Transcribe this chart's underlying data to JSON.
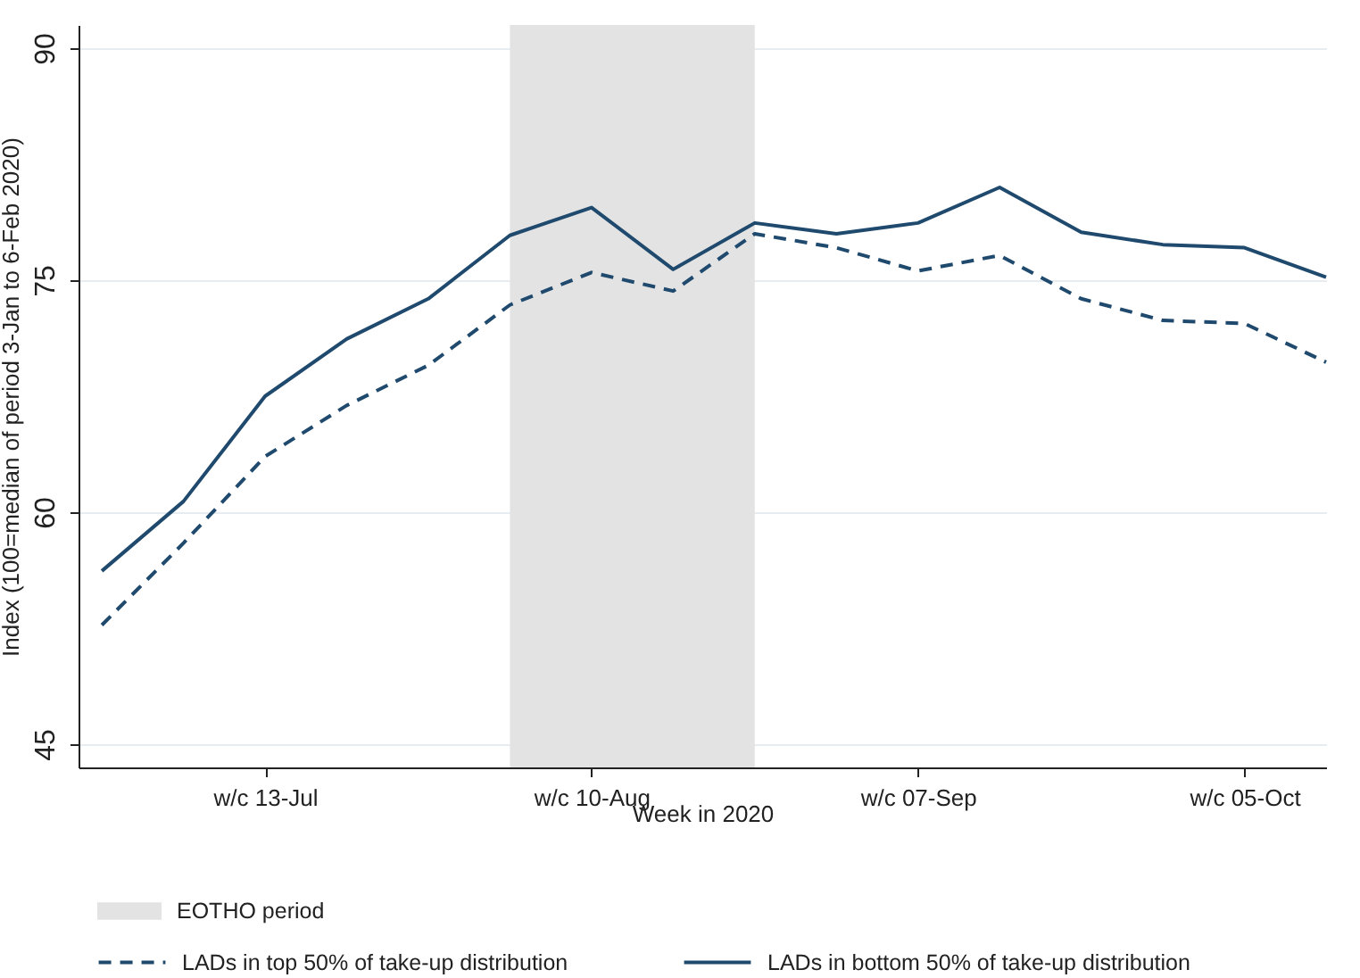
{
  "chart_data": {
    "type": "line",
    "ylabel": "Index (100=median of period 3-Jan to 6-Feb 2020)",
    "xlabel": "Week in 2020",
    "x": [
      "2020-06-29",
      "2020-07-06",
      "2020-07-13",
      "2020-07-20",
      "2020-07-27",
      "2020-08-03",
      "2020-08-10",
      "2020-08-17",
      "2020-08-24",
      "2020-08-31",
      "2020-09-07",
      "2020-09-14",
      "2020-09-21",
      "2020-09-28",
      "2020-10-05",
      "2020-10-12"
    ],
    "series": [
      {
        "name": "LADs in top 50% of take-up distribution",
        "color": "#1f4a6e",
        "line_style": "dashed",
        "values": [
          52.7,
          58.0,
          63.6,
          66.9,
          69.5,
          73.4,
          75.5,
          74.3,
          78.0,
          77.1,
          75.6,
          76.6,
          73.8,
          72.4,
          72.2,
          69.7
        ]
      },
      {
        "name": "LADs in bottom 50% of take-up distribution",
        "color": "#1f4a6e",
        "line_style": "solid",
        "values": [
          56.2,
          60.7,
          67.5,
          71.2,
          73.8,
          77.9,
          79.7,
          75.7,
          78.7,
          78.0,
          78.7,
          81.0,
          78.1,
          77.3,
          77.1,
          75.2
        ]
      }
    ],
    "bands": [
      {
        "axis": "x",
        "from": "2020-08-03",
        "to": "2020-08-24",
        "label": "EOTHO period",
        "color": "#e3e3e3"
      }
    ],
    "xlim": [
      "2020-06-27",
      "2020-10-12"
    ],
    "xticks": [
      {
        "value": "2020-07-13",
        "label": "w/c 13-Jul"
      },
      {
        "value": "2020-08-10",
        "label": "w/c 10-Aug"
      },
      {
        "value": "2020-09-07",
        "label": "w/c 07-Sep"
      },
      {
        "value": "2020-10-05",
        "label": "w/c 05-Oct"
      }
    ],
    "ylim": [
      43.5,
      91.5
    ],
    "yticks": [
      45,
      60,
      75,
      90
    ],
    "grid": "y",
    "marker": "none",
    "legend": "bottom"
  }
}
